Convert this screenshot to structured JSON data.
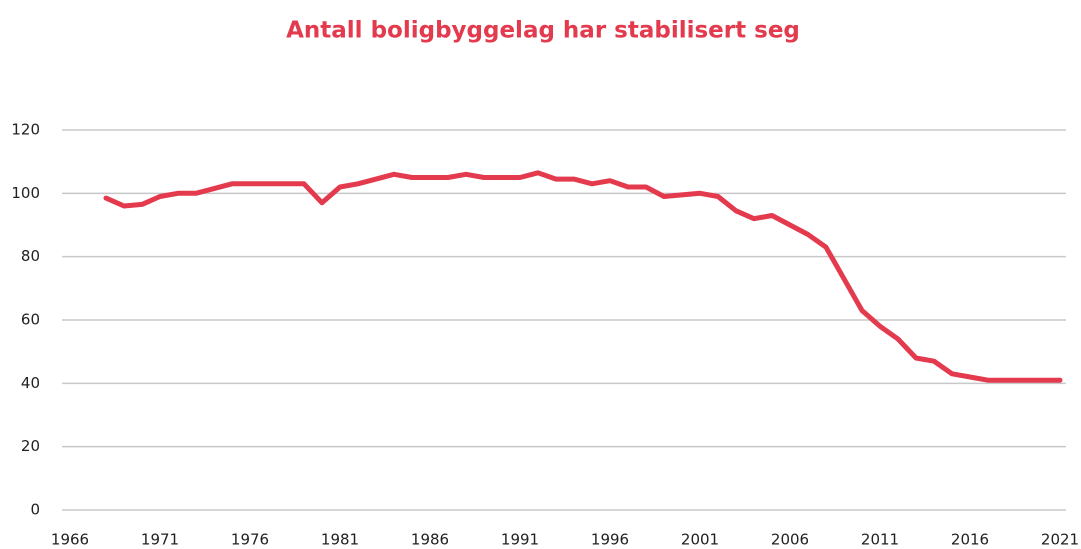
{
  "chart_data": {
    "type": "line",
    "title": "Antall boligbyggelag har stabilisert seg",
    "color": "#e33a4e",
    "x": [
      1968,
      1969,
      1970,
      1971,
      1972,
      1973,
      1974,
      1975,
      1976,
      1977,
      1978,
      1979,
      1980,
      1981,
      1982,
      1983,
      1984,
      1985,
      1986,
      1987,
      1988,
      1989,
      1990,
      1991,
      1992,
      1993,
      1994,
      1995,
      1996,
      1997,
      1998,
      1999,
      2000,
      2001,
      2002,
      2003,
      2004,
      2005,
      2006,
      2007,
      2008,
      2009,
      2010,
      2011,
      2012,
      2013,
      2014,
      2015,
      2016,
      2017,
      2018,
      2019,
      2020,
      2021
    ],
    "values": [
      98.5,
      96,
      96.5,
      99,
      100,
      100,
      101.5,
      103,
      103,
      103,
      103,
      103,
      97,
      102,
      103,
      104.5,
      106,
      105,
      105,
      105,
      106,
      105,
      105,
      105,
      106.5,
      104.5,
      104.5,
      103,
      104,
      102,
      102,
      99,
      99.5,
      100,
      99,
      94.5,
      92,
      93,
      90,
      87,
      83,
      73,
      63,
      58,
      54,
      48,
      47,
      43,
      42,
      41,
      41,
      41,
      41,
      41
    ],
    "xlim": [
      1966,
      2021
    ],
    "xticks": [
      1966,
      1971,
      1976,
      1981,
      1986,
      1991,
      1996,
      2001,
      2006,
      2011,
      2016,
      2021
    ],
    "ylim": [
      0,
      120
    ],
    "yticks": [
      0,
      20,
      40,
      60,
      80,
      100,
      120
    ],
    "grid": true
  }
}
